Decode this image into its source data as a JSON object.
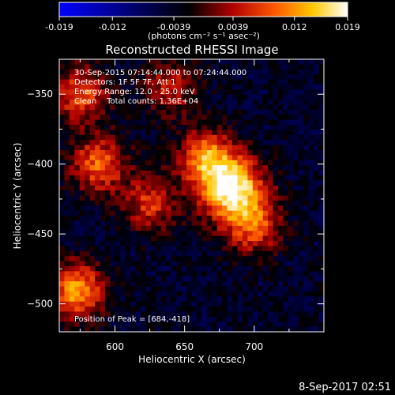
{
  "colorbar": {
    "ticks": [
      "-0.019",
      "-0.012",
      "-0.0039",
      "0.0039",
      "0.012",
      "0.019"
    ],
    "tick_values": [
      -0.019,
      -0.012,
      -0.0039,
      0.0039,
      0.012,
      0.019
    ],
    "range": [
      -0.019,
      0.019
    ],
    "units": "(photons cm⁻² s⁻¹ asec⁻²)",
    "colormap": [
      "#0000ff",
      "#000000",
      "#b00000",
      "#ff5a00",
      "#ffc800",
      "#ffffff"
    ]
  },
  "chart_data": {
    "type": "heatmap",
    "title": "Reconstructed RHESSI Image",
    "xlabel": "Heliocentric X (arcsec)",
    "ylabel": "Heliocentric Y (arcsec)",
    "xlim": [
      560,
      750
    ],
    "ylim": [
      -520,
      -325
    ],
    "xticks": [
      600,
      650,
      700
    ],
    "yticks": [
      -350,
      -400,
      -450,
      -500
    ],
    "annotations": [
      "30-Sep-2015 07:14:44.000 to 07:24:44.000",
      "Detectors: 1F 5F 7F, Att 1",
      "Energy Range: 12.0 - 25.0 keV",
      "Clean    Total counts: 1.36E+04"
    ],
    "peak_label": "Position of Peak = [684,-418]",
    "peak": [
      684,
      -418
    ],
    "sources": [
      {
        "x": 684,
        "y": -418,
        "intensity": 0.019
      },
      {
        "x": 665,
        "y": -395,
        "intensity": 0.011
      },
      {
        "x": 700,
        "y": -445,
        "intensity": 0.008
      },
      {
        "x": 572,
        "y": -490,
        "intensity": 0.013
      },
      {
        "x": 588,
        "y": -400,
        "intensity": 0.01
      },
      {
        "x": 575,
        "y": -350,
        "intensity": 0.009
      },
      {
        "x": 625,
        "y": -428,
        "intensity": 0.007
      },
      {
        "x": 640,
        "y": -345,
        "intensity": 0.005
      }
    ]
  },
  "timestamp": "8-Sep-2017 02:51"
}
